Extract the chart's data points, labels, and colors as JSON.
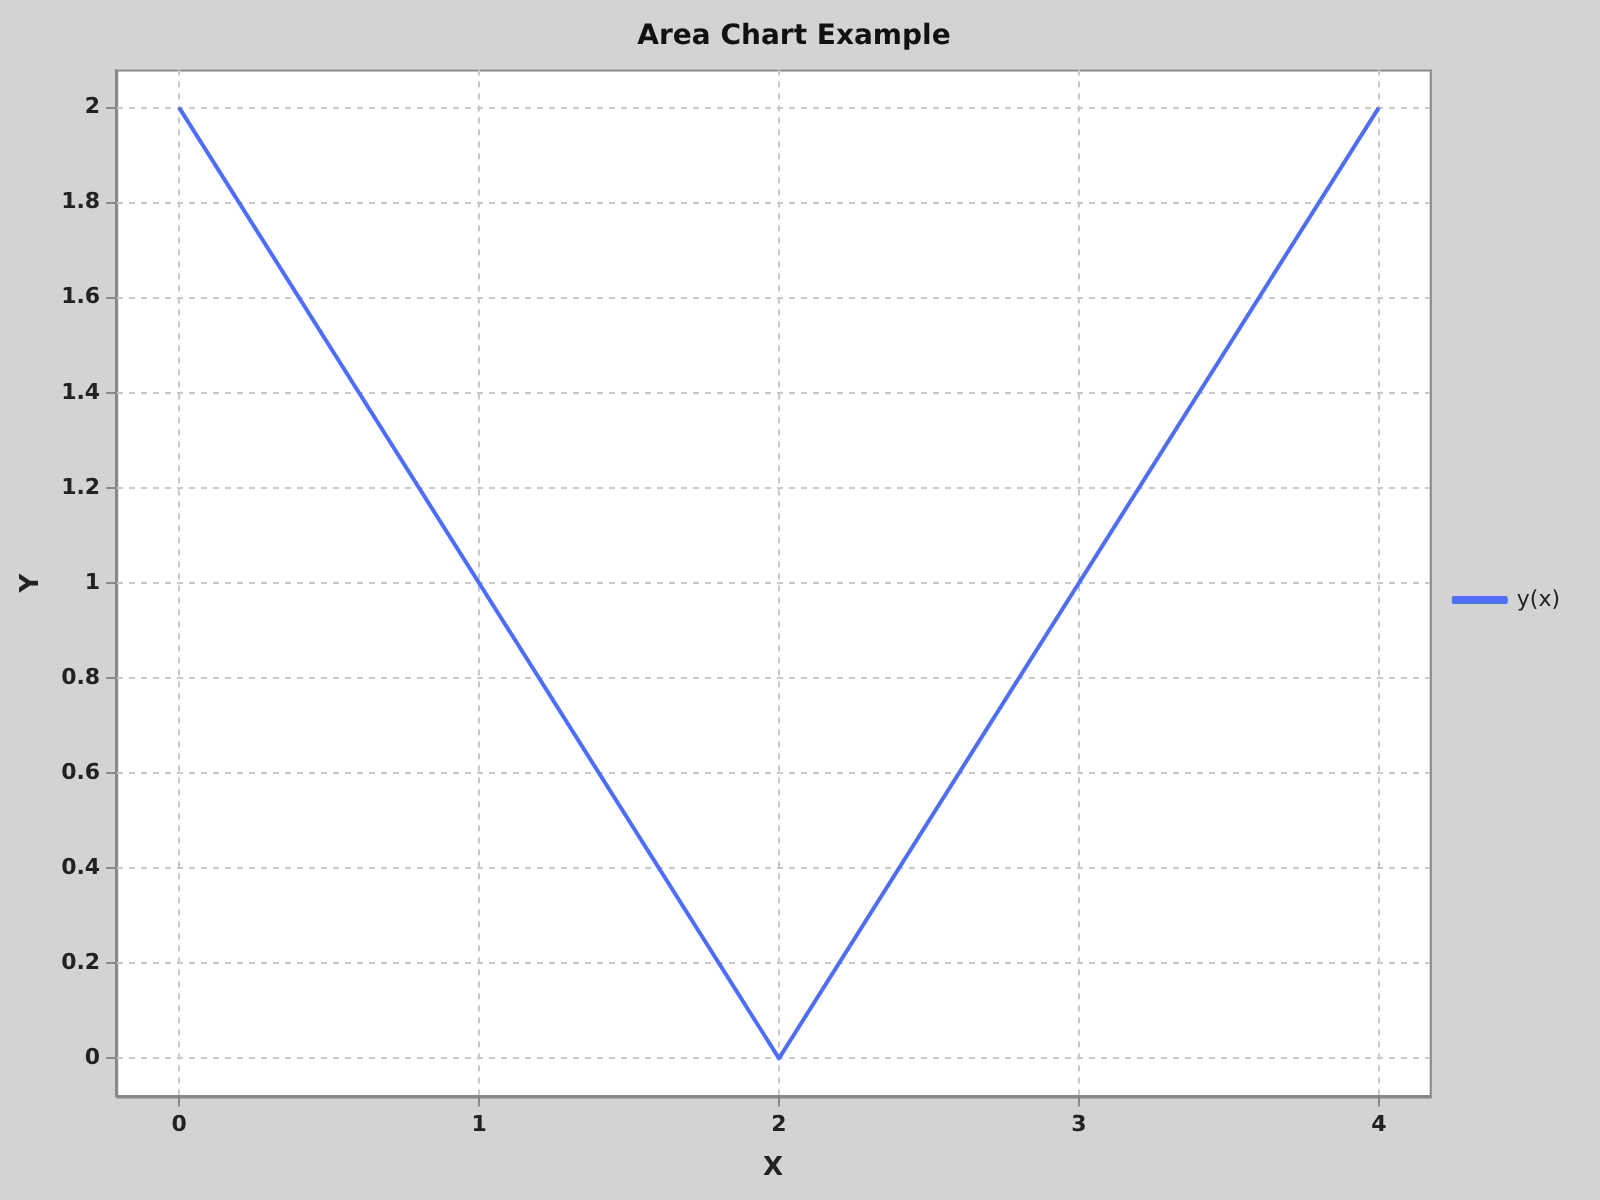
{
  "chart_data": {
    "type": "line",
    "title": "Area Chart Example",
    "xlabel": "X",
    "ylabel": "Y",
    "x": [
      0,
      2,
      4
    ],
    "series": [
      {
        "name": "y(x)",
        "color": "#4f6ef7",
        "values": [
          2,
          0,
          2
        ]
      }
    ],
    "xlim": [
      -0.21,
      4.17
    ],
    "xticks": [
      0,
      1,
      2,
      3,
      4
    ],
    "ylim": [
      -0.08,
      2.08
    ],
    "yticks": [
      0,
      0.2,
      0.4,
      0.6,
      0.8,
      1,
      1.2,
      1.4,
      1.6,
      1.8,
      2
    ],
    "grid": true,
    "legend": "right",
    "marker": "none",
    "line_style": "solid"
  }
}
